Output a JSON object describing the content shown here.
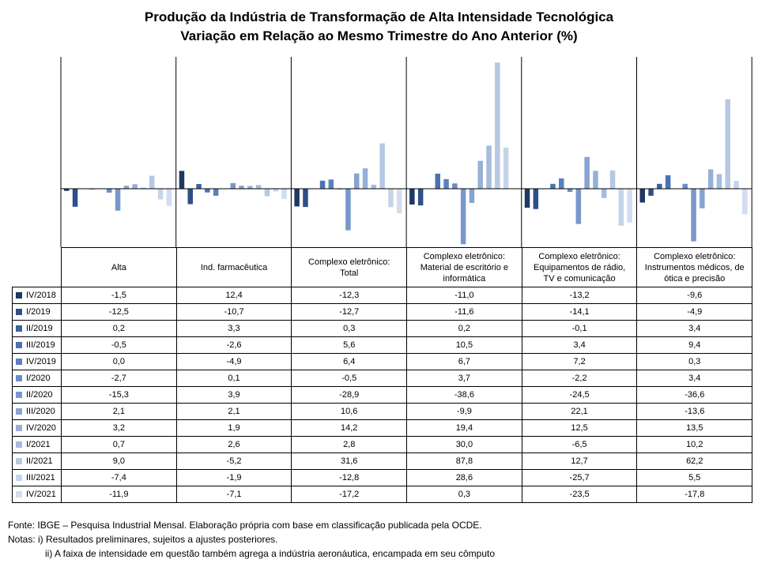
{
  "title_line1": "Produção da Indústria de Transformação de Alta Intensidade Tecnológica",
  "title_line2": "Variação em Relação ao Mesmo Trimestre do Ano Anterior (%)",
  "chart_data": {
    "type": "bar",
    "title": "Produção da Indústria de Transformação de Alta Intensidade Tecnológica - Variação em Relação ao Mesmo Trimestre do Ano Anterior (%)",
    "categories": [
      "Alta",
      "Ind. farmacêutica",
      "Complexo eletrônico: Total",
      "Complexo eletrônico: Material de escritório e informática",
      "Complexo eletrônico: Equipamentos de rádio, TV e comunicação",
      "Complexo eletrônico: Instrumentos médicos, de ótica e precisão"
    ],
    "series": [
      {
        "name": "IV/2018",
        "color": "#1f3864",
        "values": [
          "-1,5",
          "12,4",
          "-12,3",
          "-11,0",
          "-13,2",
          "-9,6"
        ]
      },
      {
        "name": "I/2019",
        "color": "#2e4f87",
        "values": [
          "-12,5",
          "-10,7",
          "-12,7",
          "-11,6",
          "-14,1",
          "-4,9"
        ]
      },
      {
        "name": "II/2019",
        "color": "#3c62a0",
        "values": [
          "0,2",
          "3,3",
          "0,3",
          "0,2",
          "-0,1",
          "3,4"
        ]
      },
      {
        "name": "III/2019",
        "color": "#4b73b3",
        "values": [
          "-0,5",
          "-2,6",
          "5,6",
          "10,5",
          "3,4",
          "9,4"
        ]
      },
      {
        "name": "IV/2019",
        "color": "#5a80bd",
        "values": [
          "0,0",
          "-4,9",
          "6,4",
          "6,7",
          "7,2",
          "0,3"
        ]
      },
      {
        "name": "I/2020",
        "color": "#6a8dc5",
        "values": [
          "-2,7",
          "0,1",
          "-0,5",
          "3,7",
          "-2,2",
          "3,4"
        ]
      },
      {
        "name": "II/2020",
        "color": "#7898cb",
        "values": [
          "-15,3",
          "3,9",
          "-28,9",
          "-38,6",
          "-24,5",
          "-36,6"
        ]
      },
      {
        "name": "III/2020",
        "color": "#86a3d1",
        "values": [
          "2,1",
          "2,1",
          "10,6",
          "-9,9",
          "22,1",
          "-13,6"
        ]
      },
      {
        "name": "IV/2020",
        "color": "#96b0d8",
        "values": [
          "3,2",
          "1,9",
          "14,2",
          "19,4",
          "12,5",
          "13,5"
        ]
      },
      {
        "name": "I/2021",
        "color": "#a6bcde",
        "values": [
          "0,7",
          "2,6",
          "2,8",
          "30,0",
          "-6,5",
          "10,2"
        ]
      },
      {
        "name": "II/2021",
        "color": "#b6c8e4",
        "values": [
          "9,0",
          "-5,2",
          "31,6",
          "87,8",
          "12,7",
          "62,2"
        ]
      },
      {
        "name": "III/2021",
        "color": "#c6d4ea",
        "values": [
          "-7,4",
          "-1,9",
          "-12,8",
          "28,6",
          "-25,7",
          "5,5"
        ]
      },
      {
        "name": "IV/2021",
        "color": "#d2ddef",
        "values": [
          "-11,9",
          "-7,1",
          "-17,2",
          "0,3",
          "-23,5",
          "-17,8"
        ]
      }
    ],
    "ylim": [
      -40,
      90
    ],
    "grid": false,
    "legend": "data table below the chart"
  },
  "table": {
    "headers": [
      [
        "Alta"
      ],
      [
        "Ind. farmacêutica"
      ],
      [
        "Complexo eletrônico:",
        "Total"
      ],
      [
        "Complexo eletrônico:",
        "Material de escritório e",
        "informática"
      ],
      [
        "Complexo eletrônico:",
        "Equipamentos de rádio,",
        "TV e comunicação"
      ],
      [
        "Complexo eletrônico:",
        "Instrumentos médicos, de",
        "ótica e precisão"
      ]
    ]
  },
  "notes": {
    "source": "Fonte: IBGE – Pesquisa Industrial Mensal. Elaboração própria com base em classificação publicada pela OCDE.",
    "note1": "Notas: i) Resultados preliminares, sujeitos a ajustes posteriores.",
    "note2": "ii) A faixa de intensidade em questão também agrega a indústria aeronáutica, encampada em seu cômputo"
  }
}
